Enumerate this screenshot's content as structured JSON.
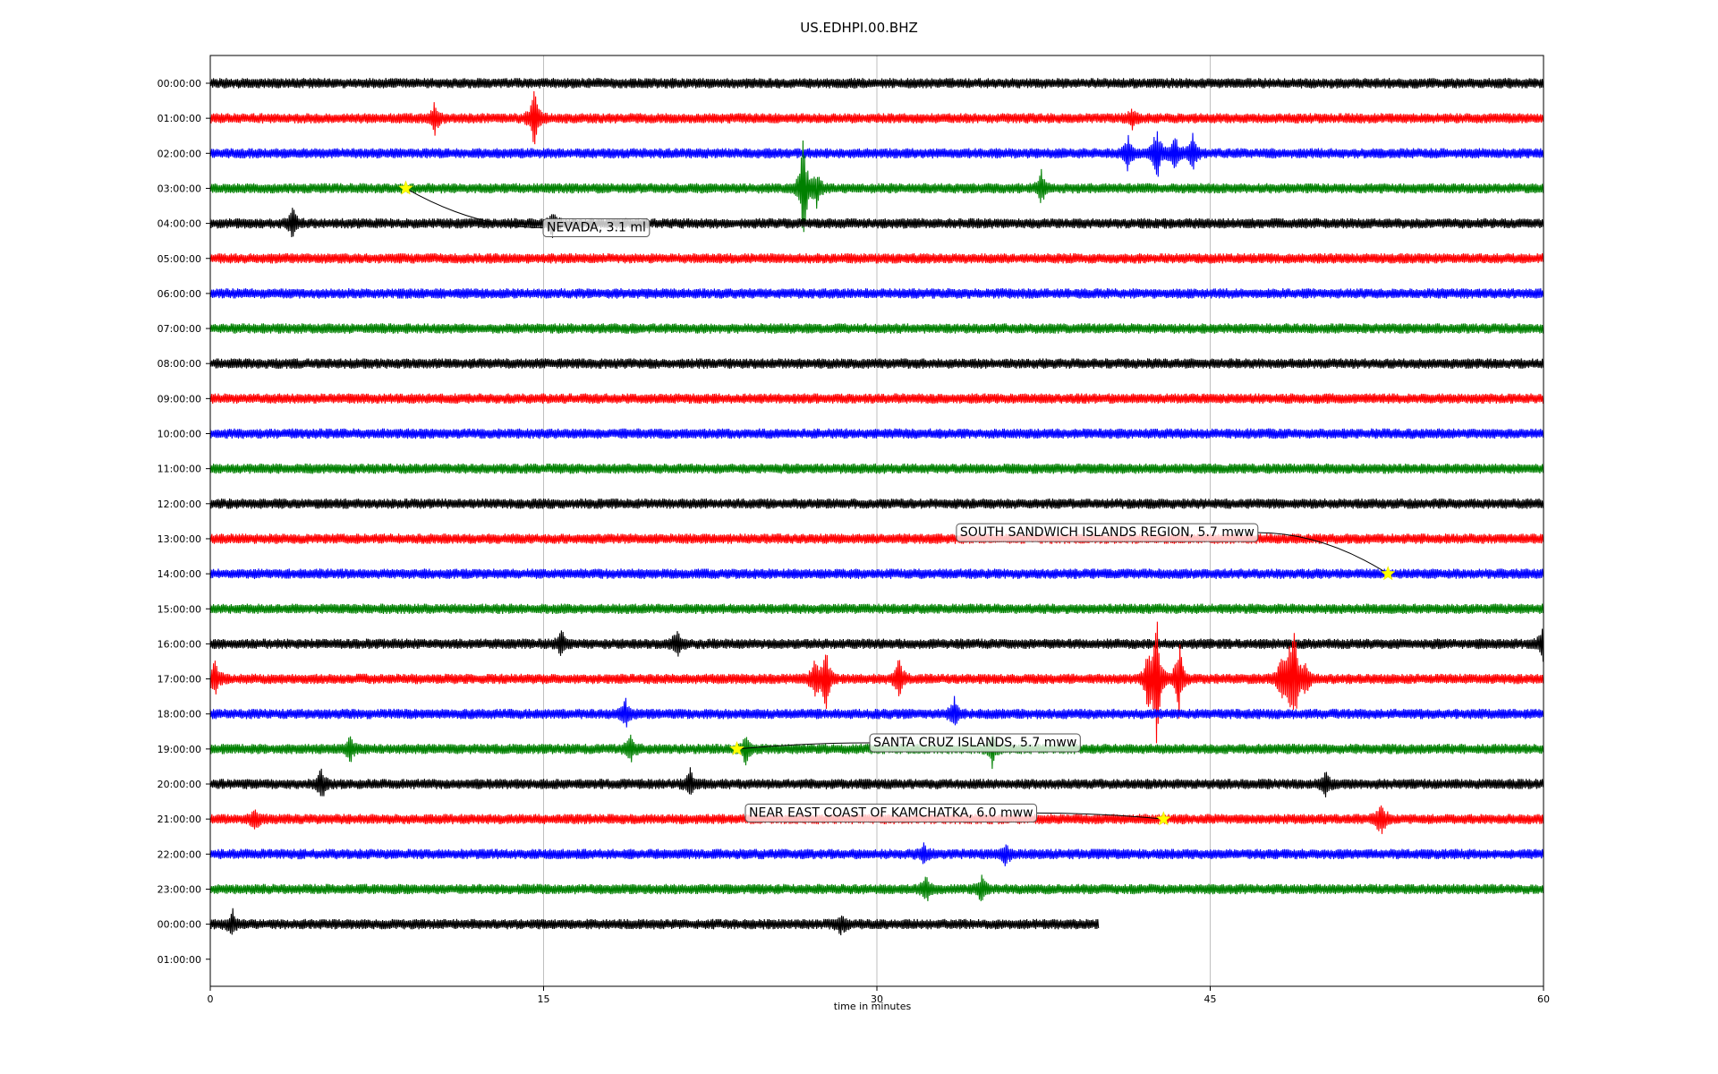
{
  "chart_data": {
    "type": "line",
    "title": "US.EDHPI.00.BHZ",
    "xlabel": "time in minutes",
    "ylabel": "",
    "xlim": [
      0,
      60
    ],
    "x_ticks": [
      0,
      15,
      30,
      45,
      60
    ],
    "grid": "vertical",
    "row_labels": [
      "00:00:00",
      "01:00:00",
      "02:00:00",
      "03:00:00",
      "04:00:00",
      "05:00:00",
      "06:00:00",
      "07:00:00",
      "08:00:00",
      "09:00:00",
      "10:00:00",
      "11:00:00",
      "12:00:00",
      "13:00:00",
      "14:00:00",
      "15:00:00",
      "16:00:00",
      "17:00:00",
      "18:00:00",
      "19:00:00",
      "20:00:00",
      "21:00:00",
      "22:00:00",
      "23:00:00",
      "00:00:00",
      "01:00:00"
    ],
    "trace_colors": [
      "#000000",
      "#ff0000",
      "#0000ff",
      "#008000"
    ],
    "last_trace_end_minute": 40,
    "spikes": [
      {
        "row": 1,
        "minute": 10.1,
        "amp": 0.35
      },
      {
        "row": 1,
        "minute": 14.6,
        "amp": 0.9
      },
      {
        "row": 1,
        "minute": 41.5,
        "amp": 0.2
      },
      {
        "row": 2,
        "minute": 41.3,
        "amp": 0.4
      },
      {
        "row": 2,
        "minute": 42.6,
        "amp": 0.7
      },
      {
        "row": 2,
        "minute": 43.4,
        "amp": 0.5
      },
      {
        "row": 2,
        "minute": 44.2,
        "amp": 0.45
      },
      {
        "row": 3,
        "minute": 26.7,
        "amp": 1.4
      },
      {
        "row": 3,
        "minute": 27.3,
        "amp": 0.4
      },
      {
        "row": 3,
        "minute": 37.4,
        "amp": 0.35
      },
      {
        "row": 4,
        "minute": 3.7,
        "amp": 0.35
      },
      {
        "row": 4,
        "minute": 15.4,
        "amp": 0.3
      },
      {
        "row": 16,
        "minute": 15.8,
        "amp": 0.3
      },
      {
        "row": 16,
        "minute": 21.0,
        "amp": 0.3
      },
      {
        "row": 16,
        "minute": 60.0,
        "amp": 0.4
      },
      {
        "row": 17,
        "minute": 0.2,
        "amp": 0.45
      },
      {
        "row": 17,
        "minute": 27.2,
        "amp": 0.5
      },
      {
        "row": 17,
        "minute": 27.7,
        "amp": 0.8
      },
      {
        "row": 17,
        "minute": 31.0,
        "amp": 0.5
      },
      {
        "row": 17,
        "minute": 42.2,
        "amp": 0.7
      },
      {
        "row": 17,
        "minute": 42.6,
        "amp": 1.6
      },
      {
        "row": 17,
        "minute": 43.6,
        "amp": 0.9
      },
      {
        "row": 17,
        "minute": 48.2,
        "amp": 0.6
      },
      {
        "row": 17,
        "minute": 48.6,
        "amp": 0.8
      },
      {
        "row": 17,
        "minute": 48.8,
        "amp": 1.0
      },
      {
        "row": 17,
        "minute": 49.3,
        "amp": 0.4
      },
      {
        "row": 18,
        "minute": 18.7,
        "amp": 0.35
      },
      {
        "row": 18,
        "minute": 33.5,
        "amp": 0.35
      },
      {
        "row": 19,
        "minute": 6.3,
        "amp": 0.3
      },
      {
        "row": 19,
        "minute": 18.9,
        "amp": 0.3
      },
      {
        "row": 19,
        "minute": 24.1,
        "amp": 0.35
      },
      {
        "row": 19,
        "minute": 35.2,
        "amp": 0.4
      },
      {
        "row": 20,
        "minute": 5.0,
        "amp": 0.4
      },
      {
        "row": 20,
        "minute": 21.6,
        "amp": 0.35
      },
      {
        "row": 20,
        "minute": 50.2,
        "amp": 0.3
      },
      {
        "row": 21,
        "minute": 2.0,
        "amp": 0.25
      },
      {
        "row": 21,
        "minute": 52.7,
        "amp": 0.5
      },
      {
        "row": 22,
        "minute": 32.1,
        "amp": 0.25
      },
      {
        "row": 22,
        "minute": 35.8,
        "amp": 0.25
      },
      {
        "row": 23,
        "minute": 32.2,
        "amp": 0.35
      },
      {
        "row": 23,
        "minute": 34.7,
        "amp": 0.3
      },
      {
        "row": 24,
        "minute": 1.0,
        "amp": 0.3
      },
      {
        "row": 24,
        "minute": 28.4,
        "amp": 0.25
      }
    ],
    "events": [
      {
        "label": "NEVADA, 3.1 ml",
        "row": 3,
        "minute": 8.8,
        "label_row": 4.1,
        "label_minute": 14.9,
        "label_anchor": "start"
      },
      {
        "label": "SOUTH SANDWICH ISLANDS REGION, 5.7 mww",
        "row": 14,
        "minute": 53.0,
        "label_row": 12.8,
        "label_minute": 33.5,
        "label_anchor": "start"
      },
      {
        "label": "SANTA CRUZ ISLANDS, 5.7 mww",
        "row": 19,
        "minute": 23.7,
        "label_row": 18.8,
        "label_minute": 29.6,
        "label_anchor": "start"
      },
      {
        "label": "NEAR EAST COAST OF KAMCHATKA, 6.0 mww",
        "row": 21,
        "minute": 42.9,
        "label_row": 20.8,
        "label_minute": 24.0,
        "label_anchor": "start"
      }
    ]
  }
}
